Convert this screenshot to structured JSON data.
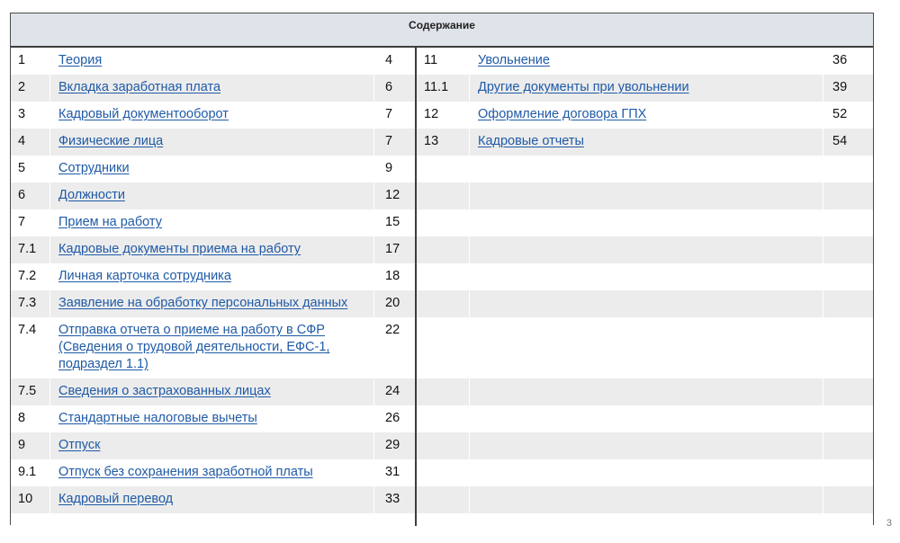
{
  "toc": {
    "title": "Содержание",
    "left": [
      {
        "num": "1",
        "title": "Теория",
        "page": "4"
      },
      {
        "num": "2",
        "title": "Вкладка заработная плата",
        "page": "6"
      },
      {
        "num": "3",
        "title": "Кадровый документооборот",
        "page": "7"
      },
      {
        "num": "4",
        "title": "Физические лица",
        "page": "7"
      },
      {
        "num": "5",
        "title": "Сотрудники",
        "page": "9"
      },
      {
        "num": "6",
        "title": "Должности",
        "page": "12"
      },
      {
        "num": "7",
        "title": "Прием на работу",
        "page": "15"
      },
      {
        "num": "7.1",
        "title": "Кадровые документы приема на работу",
        "page": "17"
      },
      {
        "num": "7.2",
        "title": "Личная карточка сотрудника",
        "page": "18"
      },
      {
        "num": "7.3",
        "title": "Заявление на обработку персональных данных",
        "page": "20"
      },
      {
        "num": "7.4",
        "title": "Отправка отчета о приеме на работу в СФР (Сведения о трудовой деятельности, ЕФС-1, подраздел 1.1)",
        "page": "22"
      },
      {
        "num": "7.5",
        "title": "Сведения о застрахованных лицах",
        "page": "24"
      },
      {
        "num": "8",
        "title": "Стандартные налоговые вычеты",
        "page": "26"
      },
      {
        "num": "9",
        "title": "Отпуск",
        "page": "29"
      },
      {
        "num": "9.1",
        "title": "Отпуск без сохранения заработной платы",
        "page": "31"
      },
      {
        "num": "10",
        "title": "Кадровый перевод",
        "page": "33"
      }
    ],
    "right": [
      {
        "num": "11",
        "title": "Увольнение",
        "page": "36"
      },
      {
        "num": "11.1",
        "title": "Другие документы при увольнении",
        "page": "39"
      },
      {
        "num": "12",
        "title": "Оформление договора ГПХ",
        "page": "52"
      },
      {
        "num": "13",
        "title": "Кадровые отчеты",
        "page": "54"
      }
    ]
  },
  "footer": {
    "page_number": "3"
  }
}
